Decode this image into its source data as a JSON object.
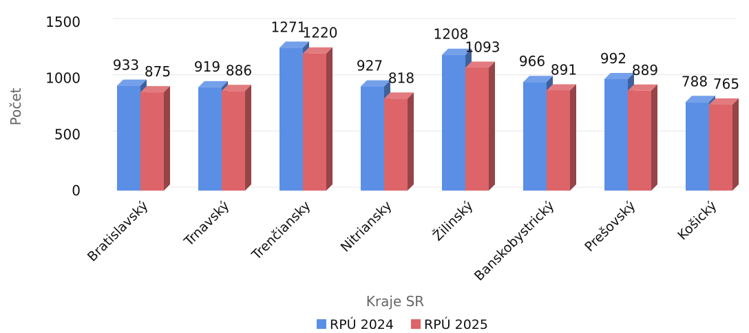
{
  "chart_data": {
    "type": "bar",
    "categories": [
      "Bratislavský",
      "Trnavský",
      "Trenčiansky",
      "Nitriansky",
      "Žilinský",
      "Banskobystrický",
      "Prešovský",
      "Košický"
    ],
    "series": [
      {
        "name": "RPÚ 2024",
        "values": [
          933,
          919,
          1271,
          927,
          1208,
          966,
          992,
          788
        ],
        "color": "#5b8fe6"
      },
      {
        "name": "RPÚ 2025",
        "values": [
          875,
          886,
          1220,
          818,
          1093,
          891,
          889,
          765
        ],
        "color": "#dd6468"
      }
    ],
    "xlabel": "Kraje SR",
    "ylabel": "Počet",
    "ylim": [
      0,
      1500
    ],
    "yticks": [
      0,
      500,
      1000,
      1500
    ],
    "grid": true,
    "legend": "bottom",
    "style": "3d-clustered-column"
  }
}
